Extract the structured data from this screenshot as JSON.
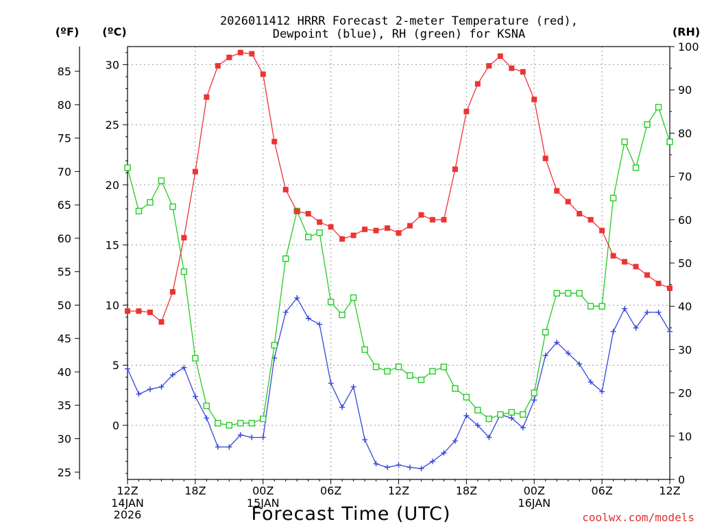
{
  "title": {
    "line1": "2026011412 HRRR Forecast 2-meter Temperature (red),",
    "line2": "Dewpoint (blue), RH (green) for KSNA"
  },
  "colors": {
    "temperature": "#ee3333",
    "dewpoint": "#3344dd",
    "rh": "#22cc22",
    "credit": "#e03030",
    "grid": "#999999",
    "axis": "#000000"
  },
  "axes": {
    "f_unit": "(ºF)",
    "c_unit": "(ºC)",
    "rh_unit": "(RH)",
    "x_title": "Forecast Time (UTC)",
    "f_ticks": [
      "25",
      "30",
      "35",
      "40",
      "45",
      "50",
      "55",
      "60",
      "65",
      "70",
      "75",
      "80",
      "85"
    ],
    "c_ticks": [
      "0",
      "5",
      "10",
      "15",
      "20",
      "25",
      "30"
    ],
    "rh_ticks": [
      "0",
      "10",
      "20",
      "30",
      "40",
      "50",
      "60",
      "70",
      "80",
      "90",
      "100"
    ],
    "x_ticks": [
      "12Z",
      "18Z",
      "00Z",
      "06Z",
      "12Z",
      "18Z",
      "00Z",
      "06Z",
      "12Z"
    ],
    "date_labels": [
      {
        "line1": "14JAN",
        "line2": "2026",
        "hour": 0
      },
      {
        "line1": "15JAN",
        "line2": "",
        "hour": 12
      },
      {
        "line1": "16JAN",
        "line2": "",
        "hour": 36
      }
    ]
  },
  "credit": "coolwx.com/models",
  "chart_data": {
    "type": "line",
    "title": "2026011412 HRRR Forecast 2-meter Temperature (red), Dewpoint (blue), RH (green) for KSNA",
    "xlabel": "Forecast Time (UTC)",
    "x_unit": "forecast hour from 12Z 14JAN2026",
    "xlim": [
      0,
      48
    ],
    "ylim_c": [
      -4.5,
      31.5
    ],
    "ylim_f": [
      23.9,
      88.7
    ],
    "ylim_rh": [
      0,
      100
    ],
    "grid": true,
    "x": [
      0,
      1,
      2,
      3,
      4,
      5,
      6,
      7,
      8,
      9,
      10,
      11,
      12,
      13,
      14,
      15,
      16,
      17,
      18,
      19,
      20,
      21,
      22,
      23,
      24,
      25,
      26,
      27,
      28,
      29,
      30,
      31,
      32,
      33,
      34,
      35,
      36,
      37,
      38,
      39,
      40,
      41,
      42,
      43,
      44,
      45,
      46,
      47,
      48
    ],
    "series": [
      {
        "name": "Temperature",
        "unit": "°C",
        "axis": "left",
        "marker": "filled-square",
        "values": [
          9.5,
          9.5,
          9.4,
          8.6,
          11.1,
          15.6,
          21.1,
          27.3,
          29.9,
          30.6,
          31.0,
          30.9,
          29.2,
          23.6,
          19.6,
          17.8,
          17.6,
          16.9,
          16.5,
          15.5,
          15.8,
          16.3,
          16.2,
          16.4,
          16.0,
          16.6,
          17.5,
          17.1,
          17.1,
          21.3,
          26.1,
          28.4,
          29.9,
          30.7,
          29.7,
          29.4,
          27.1,
          22.2,
          19.5,
          18.6,
          17.6,
          17.1,
          16.2,
          14.1,
          13.6,
          13.2,
          12.5,
          11.8,
          11.4
        ]
      },
      {
        "name": "Dewpoint",
        "unit": "°C",
        "axis": "left",
        "marker": "plus",
        "values": [
          4.7,
          2.6,
          3.0,
          3.2,
          4.2,
          4.8,
          2.4,
          0.6,
          -1.8,
          -1.8,
          -0.8,
          -1.0,
          -1.0,
          5.6,
          9.4,
          10.6,
          8.9,
          8.4,
          3.5,
          1.5,
          3.2,
          -1.2,
          -3.2,
          -3.5,
          -3.3,
          -3.5,
          -3.6,
          -3.0,
          -2.3,
          -1.3,
          0.8,
          0.0,
          -1.0,
          0.9,
          0.6,
          -0.2,
          2.1,
          5.8,
          6.9,
          6.0,
          5.1,
          3.6,
          2.8,
          7.8,
          9.7,
          8.1,
          9.4,
          9.4,
          7.8
        ]
      },
      {
        "name": "RH",
        "unit": "%",
        "axis": "right",
        "marker": "open-square",
        "values": [
          72,
          62,
          64,
          69,
          63,
          48,
          28,
          17,
          13,
          12.5,
          13,
          13,
          14,
          31,
          51,
          62,
          56,
          57,
          41,
          38,
          42,
          30,
          26,
          25,
          26,
          24,
          23,
          25,
          26,
          21,
          19,
          16,
          14,
          15,
          15.5,
          15,
          20,
          34,
          43,
          43,
          43,
          40,
          40,
          65,
          78,
          72,
          82,
          86,
          78
        ]
      }
    ]
  }
}
